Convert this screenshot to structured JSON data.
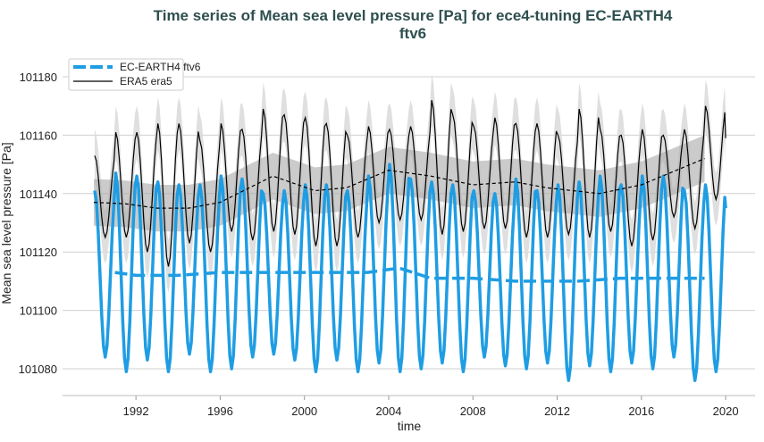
{
  "chart_data": {
    "type": "line",
    "title": "Time series of Mean sea level pressure [Pa] for ece4-tuning EC-EARTH4",
    "title_line2": "ftv6",
    "xlabel": "time",
    "ylabel": "Mean sea level pressure [Pa]",
    "xlim": [
      1989.5,
      2021.5
    ],
    "ylim": [
      101062,
      101190
    ],
    "x_ticks": [
      "1992",
      "1996",
      "2000",
      "2004",
      "2008",
      "2012",
      "2016",
      "2020"
    ],
    "y_ticks": [
      "101080",
      "101100",
      "101120",
      "101140",
      "101160",
      "101180"
    ],
    "grid": "horizontal",
    "legend_placement": "top-left",
    "legend": [
      "EC-EARTH4 ftv6",
      "ERA5 era5"
    ],
    "colors": {
      "model": "#1f9de3",
      "obs": "#000000",
      "band_light": "#dcdcdc",
      "band_dark": "#a9a9a9"
    },
    "years": [
      1990,
      1991,
      1992,
      1993,
      1994,
      1995,
      1996,
      1997,
      1998,
      1999,
      2000,
      2001,
      2002,
      2003,
      2004,
      2005,
      2006,
      2007,
      2008,
      2009,
      2010,
      2011,
      2012,
      2013,
      2014,
      2015,
      2016,
      2017,
      2018,
      2019
    ],
    "series": [
      {
        "name": "EC-EARTH4 ftv6",
        "style": "thick-solid",
        "annual_max": [
          101141,
          101147,
          101146,
          101144,
          101143,
          101143,
          101146,
          101145,
          101140,
          101141,
          101143,
          101143,
          101141,
          101146,
          101150,
          101145,
          101144,
          101143,
          101141,
          101140,
          101145,
          101141,
          101143,
          101144,
          101146,
          101143,
          101146,
          101146,
          101141,
          101143
        ],
        "annual_min": [
          101084,
          101079,
          101083,
          101079,
          101085,
          101079,
          101080,
          101084,
          101085,
          101083,
          101079,
          101083,
          101079,
          101082,
          101079,
          101080,
          101082,
          101079,
          101084,
          101081,
          101080,
          101082,
          101076,
          101081,
          101079,
          101082,
          101080,
          101084,
          101076,
          101079
        ],
        "end_value": 101135,
        "rolling_mean": {
          "x": [
            1991,
            1992,
            1994,
            1996,
            2000,
            2003,
            2004.5,
            2006,
            2008,
            2010,
            2013,
            2015,
            2019
          ],
          "y": [
            101113,
            101112,
            101112,
            101113,
            101113,
            101113,
            101114.5,
            101111,
            101111,
            101110,
            101110,
            101111,
            101111
          ]
        }
      },
      {
        "name": "ERA5 era5",
        "style": "thin-solid",
        "annual_max": [
          101153,
          101161,
          101161,
          101164,
          101164,
          101158,
          101164,
          101162,
          101169,
          101167,
          101166,
          101164,
          101160,
          101163,
          101162,
          101163,
          101172,
          101167,
          101163,
          101166,
          101164,
          101164,
          101160,
          101169,
          101162,
          101160,
          101162,
          101160,
          101162,
          101170
        ],
        "annual_min": [
          101125,
          101125,
          101120,
          101115,
          101123,
          101120,
          101127,
          101124,
          101127,
          101126,
          101122,
          101122,
          101125,
          101130,
          101131,
          101131,
          101126,
          101127,
          101128,
          101128,
          101125,
          101125,
          101126,
          101125,
          101127,
          101122,
          101124,
          101132,
          101128,
          101138
        ],
        "end_value": 101159,
        "rolling_mean": {
          "x": [
            1990,
            1991.5,
            1993,
            1994.5,
            1996,
            1998.5,
            2000.5,
            2002,
            2004,
            2006,
            2008,
            2010,
            2011.5,
            2014,
            2016,
            2019
          ],
          "y": [
            101137,
            101136.5,
            101135,
            101135,
            101137,
            101146,
            101141,
            101142,
            101148,
            101146,
            101143,
            101144,
            101142,
            101140,
            101143,
            101152
          ]
        }
      }
    ]
  }
}
